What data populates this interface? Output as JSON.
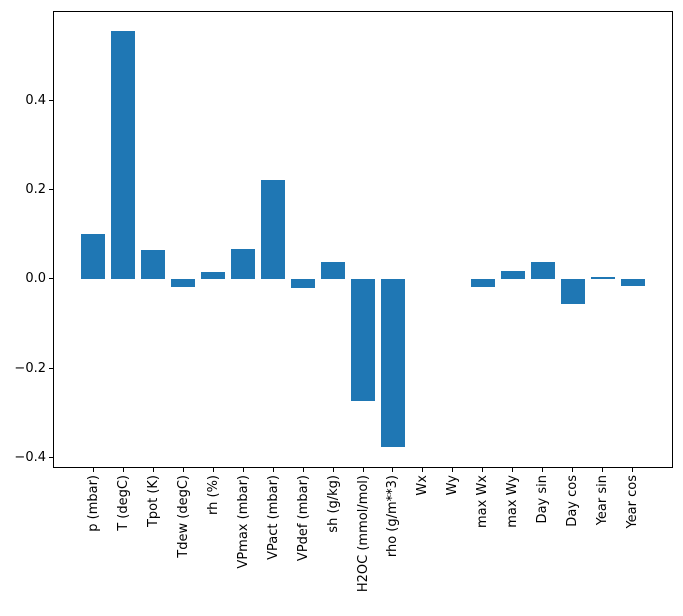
{
  "figure": {
    "background_color": "#ffffff",
    "text_color": "#000000",
    "spine_color": "#000000"
  },
  "chart_data": {
    "type": "bar",
    "title": "",
    "xlabel": "",
    "ylabel": "",
    "grid": false,
    "legend_position": "none",
    "bar_color": "#1f77b4",
    "bar_width_units": 0.8,
    "x_tick_rotation_deg": 90,
    "categories": [
      "p (mbar)",
      "T (degC)",
      "Tpot (K)",
      "Tdew (degC)",
      "rh (%)",
      "VPmax (mbar)",
      "VPact (mbar)",
      "VPdef (mbar)",
      "sh (g/kg)",
      "H2OC (mmol/mol)",
      "rho (g/m**3)",
      "Wx",
      "Wy",
      "max Wx",
      "max Wy",
      "Day sin",
      "Day cos",
      "Year sin",
      "Year cos"
    ],
    "values": [
      0.101,
      0.556,
      0.066,
      -0.018,
      0.015,
      0.068,
      0.223,
      -0.021,
      0.037,
      -0.273,
      -0.377,
      0.0,
      0.0,
      -0.018,
      0.018,
      0.039,
      -0.056,
      0.004,
      -0.016
    ],
    "ylim": [
      -0.424,
      0.601
    ],
    "xlim": [
      -1.34,
      19.34
    ],
    "yticks": [
      {
        "value": -0.4,
        "label": "−0.4"
      },
      {
        "value": -0.2,
        "label": "−0.2"
      },
      {
        "value": 0.0,
        "label": "0.0"
      },
      {
        "value": 0.2,
        "label": "0.2"
      },
      {
        "value": 0.4,
        "label": "0.4"
      }
    ]
  }
}
